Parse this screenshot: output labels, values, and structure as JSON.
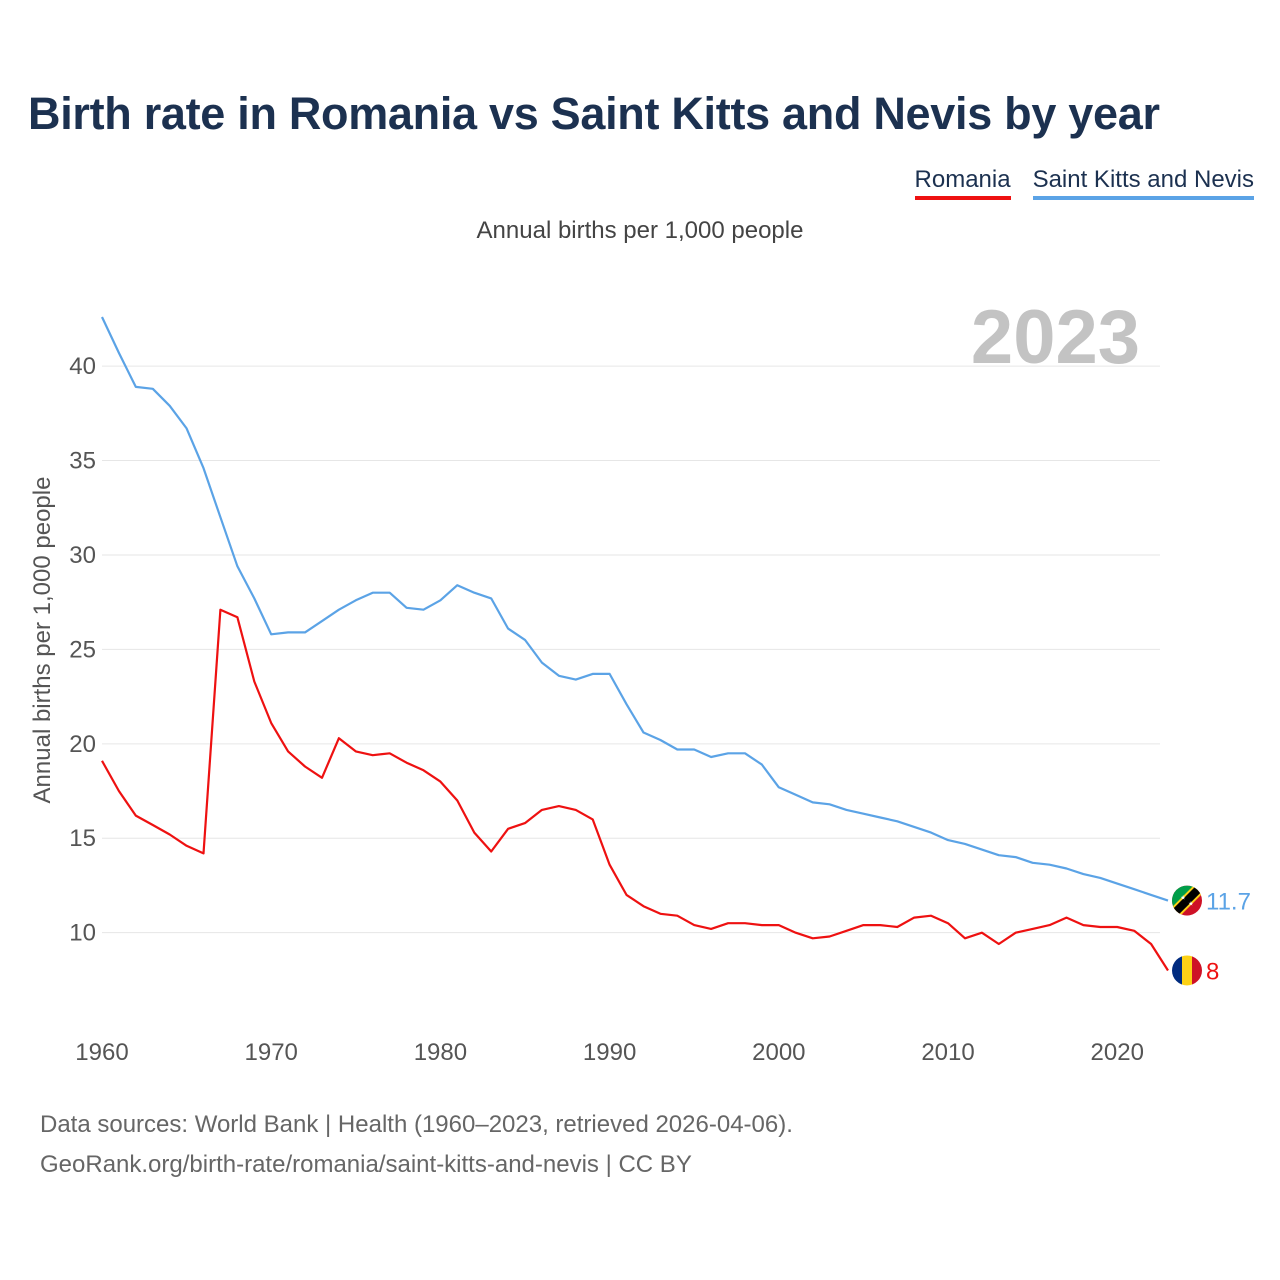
{
  "title": "Birth rate in Romania vs Saint Kitts and Nevis by year",
  "subtitle": "Annual births per 1,000 people",
  "year_badge": "2023",
  "legend": [
    {
      "label": "Romania",
      "color": "#ee1111"
    },
    {
      "label": "Saint Kitts and Nevis",
      "color": "#5ba3e6"
    }
  ],
  "footer": {
    "line1": "Data sources: World Bank | Health (1960–2023, retrieved 2026-04-06).",
    "line2": "GeoRank.org/birth-rate/romania/saint-kitts-and-nevis | CC BY"
  },
  "chart_data": {
    "type": "line",
    "title": "Birth rate in Romania vs Saint Kitts and Nevis by year",
    "xlabel": "",
    "ylabel": "Annual births per 1,000 people",
    "xlim": [
      1960,
      2023
    ],
    "ylim": [
      5.8,
      43.5
    ],
    "x_ticks": [
      "1960",
      "1970",
      "1980",
      "1990",
      "2000",
      "2010",
      "2020"
    ],
    "y_ticks": [
      "10",
      "15",
      "20",
      "25",
      "30",
      "35",
      "40"
    ],
    "grid": true,
    "x": [
      1960,
      1961,
      1962,
      1963,
      1964,
      1965,
      1966,
      1967,
      1968,
      1969,
      1970,
      1971,
      1972,
      1973,
      1974,
      1975,
      1976,
      1977,
      1978,
      1979,
      1980,
      1981,
      1982,
      1983,
      1984,
      1985,
      1986,
      1987,
      1988,
      1989,
      1990,
      1991,
      1992,
      1993,
      1994,
      1995,
      1996,
      1997,
      1998,
      1999,
      2000,
      2001,
      2002,
      2003,
      2004,
      2005,
      2006,
      2007,
      2008,
      2009,
      2010,
      2011,
      2012,
      2013,
      2014,
      2015,
      2016,
      2017,
      2018,
      2019,
      2020,
      2021,
      2022,
      2023
    ],
    "series": [
      {
        "name": "Romania",
        "color": "#ee1111",
        "end_label": "8",
        "flag": "romania-flag-icon",
        "values": [
          19.1,
          17.5,
          16.2,
          15.7,
          15.2,
          14.6,
          14.2,
          27.1,
          26.7,
          23.3,
          21.1,
          19.6,
          18.8,
          18.2,
          20.3,
          19.6,
          19.4,
          19.5,
          19.0,
          18.6,
          18.0,
          17.0,
          15.3,
          14.3,
          15.5,
          15.8,
          16.5,
          16.7,
          16.5,
          16.0,
          13.6,
          12.0,
          11.4,
          11.0,
          10.9,
          10.4,
          10.2,
          10.5,
          10.5,
          10.4,
          10.4,
          10.0,
          9.7,
          9.8,
          10.1,
          10.4,
          10.4,
          10.3,
          10.8,
          10.9,
          10.5,
          9.7,
          10.0,
          9.4,
          10.0,
          10.2,
          10.4,
          10.8,
          10.4,
          10.3,
          10.3,
          10.1,
          9.4,
          8.0
        ]
      },
      {
        "name": "Saint Kitts and Nevis",
        "color": "#5ba3e6",
        "end_label": "11.7",
        "flag": "saint-kitts-and-nevis-flag-icon",
        "values": [
          42.6,
          40.7,
          38.9,
          38.8,
          37.9,
          36.7,
          34.6,
          32.0,
          29.4,
          27.7,
          25.8,
          25.9,
          25.9,
          26.5,
          27.1,
          27.6,
          28.0,
          28.0,
          27.2,
          27.1,
          27.6,
          28.4,
          28.0,
          27.7,
          26.1,
          25.5,
          24.3,
          23.6,
          23.4,
          23.7,
          23.7,
          22.1,
          20.6,
          20.2,
          19.7,
          19.7,
          19.3,
          19.5,
          19.5,
          18.9,
          17.7,
          17.3,
          16.9,
          16.8,
          16.5,
          16.3,
          16.1,
          15.9,
          15.6,
          15.3,
          14.9,
          14.7,
          14.4,
          14.1,
          14.0,
          13.7,
          13.6,
          13.4,
          13.1,
          12.9,
          12.6,
          12.3,
          12.0,
          11.7
        ]
      }
    ]
  }
}
